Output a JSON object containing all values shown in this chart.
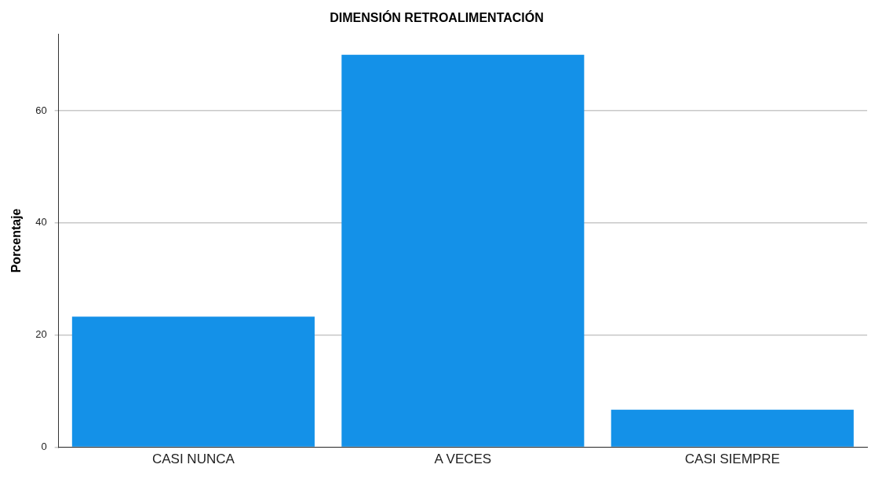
{
  "chart_data": {
    "type": "bar",
    "title": "DIMENSIÓN RETROALIMENTACIÓN",
    "ylabel": "Porcentaje",
    "categories": [
      "CASI NUNCA",
      "A VECES",
      "CASI SIEMPRE"
    ],
    "values": [
      23.3,
      70,
      6.7
    ],
    "color": "#1491e8",
    "ylim": [
      0,
      73.7
    ],
    "yticks": [
      0,
      20,
      40,
      60
    ],
    "grid": "y",
    "legend": false
  }
}
